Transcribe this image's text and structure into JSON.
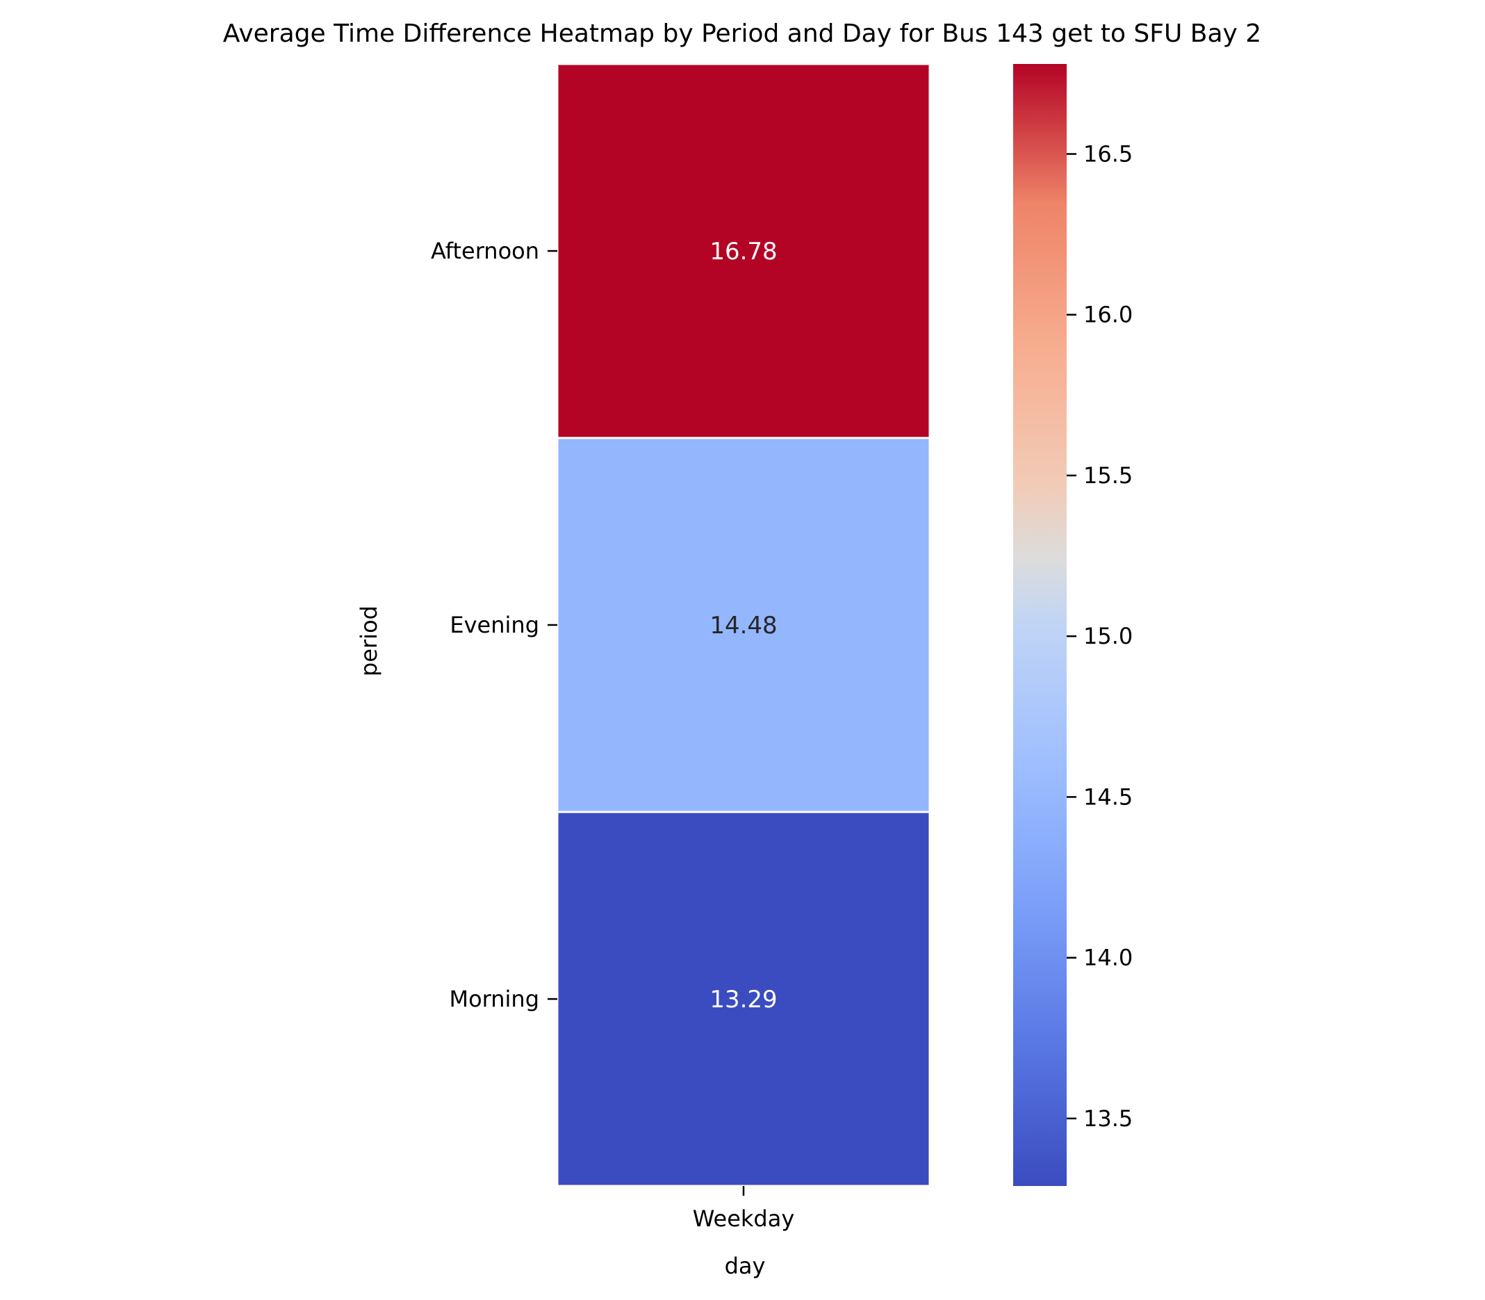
{
  "chart_data": {
    "type": "heatmap",
    "title": "Average Time Difference Heatmap by Period and Day for Bus 143 get to SFU Bay 2",
    "xlabel": "day",
    "ylabel": "period",
    "x_categories": [
      "Weekday"
    ],
    "y_categories": [
      "Afternoon",
      "Evening",
      "Morning"
    ],
    "values": [
      [
        16.78
      ],
      [
        14.48
      ],
      [
        13.29
      ]
    ],
    "value_labels": [
      [
        "16.78"
      ],
      [
        "14.48"
      ],
      [
        "13.29"
      ]
    ],
    "colormap": "coolwarm",
    "vmin": 13.29,
    "vmax": 16.78,
    "colorbar": {
      "ticks": [
        13.5,
        14.0,
        14.5,
        15.0,
        15.5,
        16.0,
        16.5
      ],
      "tick_labels": [
        "13.5",
        "14.0",
        "14.5",
        "15.0",
        "15.5",
        "16.0",
        "16.5"
      ]
    },
    "grid": false,
    "colorbar_placement": "right"
  }
}
